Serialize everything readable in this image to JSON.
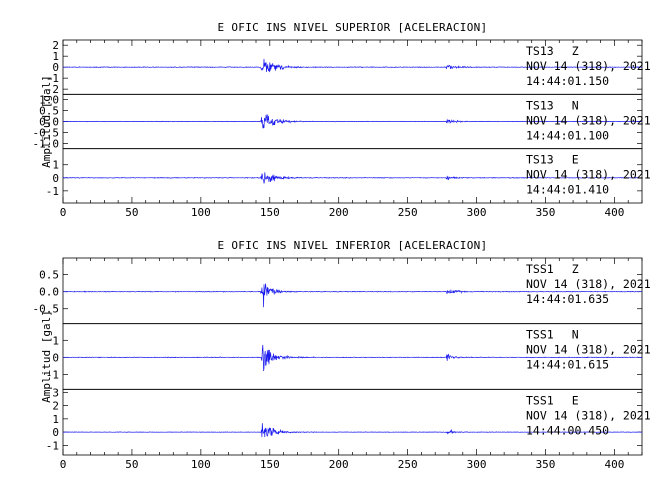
{
  "chart_data": [
    {
      "type": "line",
      "title": "E OFIC INS NIVEL SUPERIOR [ACELERACION]",
      "ylabel": "Amplitud [gal]",
      "xlim": [
        0,
        420
      ],
      "xticks": [
        "0",
        "50",
        "100",
        "150",
        "200",
        "250",
        "300",
        "350",
        "400"
      ],
      "traces": [
        {
          "station": "TS13",
          "component": "Z",
          "date": "NOV 14 (318), 2021",
          "time": "14:44:01.150",
          "ylim": [
            -2.2,
            2.2
          ],
          "yticks": [
            {
              "v": 2,
              "t": "2"
            },
            {
              "v": 1,
              "t": "1"
            },
            {
              "v": 0,
              "t": "0"
            },
            {
              "v": -1,
              "t": "-1"
            },
            {
              "v": -2,
              "t": "-2"
            }
          ],
          "events": [
            {
              "t": 144,
              "amp": 2.2
            },
            {
              "t": 278,
              "amp": 0.5
            }
          ],
          "noise": 0.05
        },
        {
          "station": "TS13",
          "component": "N",
          "date": "NOV 14 (318), 2021",
          "time": "14:44:01.100",
          "ylim": [
            -1.1,
            1.1
          ],
          "yticks": [
            {
              "v": 1.0,
              "t": "1.0"
            },
            {
              "v": 0.5,
              "t": "0.5"
            },
            {
              "v": 0.0,
              "t": "0.0"
            },
            {
              "v": -0.5,
              "t": "-0.5"
            },
            {
              "v": -1.0,
              "t": "-1.0"
            }
          ],
          "events": [
            {
              "t": 144,
              "amp": 1.05
            },
            {
              "t": 278,
              "amp": 0.22
            }
          ],
          "noise": 0.02
        },
        {
          "station": "TS13",
          "component": "E",
          "date": "NOV 14 (318), 2021",
          "time": "14:44:01.410",
          "ylim": [
            -1.7,
            2.0
          ],
          "yticks": [
            {
              "v": 1,
              "t": "1"
            },
            {
              "v": 0,
              "t": "0"
            },
            {
              "v": -1,
              "t": "-1"
            }
          ],
          "events": [
            {
              "t": 144,
              "amp": 1.4
            },
            {
              "t": 278,
              "amp": 0.35
            }
          ],
          "noise": 0.04
        }
      ]
    },
    {
      "type": "line",
      "title": "E OFIC INS NIVEL INFERIOR [ACELERACION]",
      "ylabel": "Amplitud [gal]",
      "xlim": [
        0,
        420
      ],
      "xticks": [
        "0",
        "50",
        "100",
        "150",
        "200",
        "250",
        "300",
        "350",
        "400"
      ],
      "traces": [
        {
          "station": "TSS1",
          "component": "Z",
          "date": "NOV 14 (318), 2021",
          "time": "14:44:01.635",
          "ylim": [
            -0.85,
            0.9
          ],
          "yticks": [
            {
              "v": 0.5,
              "t": "0.5"
            },
            {
              "v": 0.0,
              "t": "0.0"
            },
            {
              "v": -0.5,
              "t": "-0.5"
            }
          ],
          "events": [
            {
              "t": 144,
              "amp": 0.85
            },
            {
              "t": 278,
              "amp": 0.2
            }
          ],
          "noise": 0.015
        },
        {
          "station": "TSS1",
          "component": "N",
          "date": "NOV 14 (318), 2021",
          "time": "14:44:01.615",
          "ylim": [
            -1.7,
            1.8
          ],
          "yticks": [
            {
              "v": 1,
              "t": "1"
            },
            {
              "v": 0,
              "t": "0"
            },
            {
              "v": -1,
              "t": "-1"
            }
          ],
          "events": [
            {
              "t": 144,
              "amp": 1.6
            },
            {
              "t": 278,
              "amp": 0.35
            }
          ],
          "noise": 0.03
        },
        {
          "station": "TSS1",
          "component": "E",
          "date": "NOV 14 (318), 2021",
          "time": "14:44:00.450",
          "ylim": [
            -1.5,
            3.0
          ],
          "yticks": [
            {
              "v": 3,
              "t": "3"
            },
            {
              "v": 2,
              "t": "2"
            },
            {
              "v": 1,
              "t": "1"
            },
            {
              "v": 0,
              "t": "0"
            },
            {
              "v": -1,
              "t": "-1"
            }
          ],
          "events": [
            {
              "t": 144,
              "amp": 1.6
            },
            {
              "t": 278,
              "amp": 0.4
            }
          ],
          "noise": 0.03
        }
      ]
    }
  ],
  "colors": {
    "trace": "#1a1aee",
    "axes": "#000000"
  }
}
